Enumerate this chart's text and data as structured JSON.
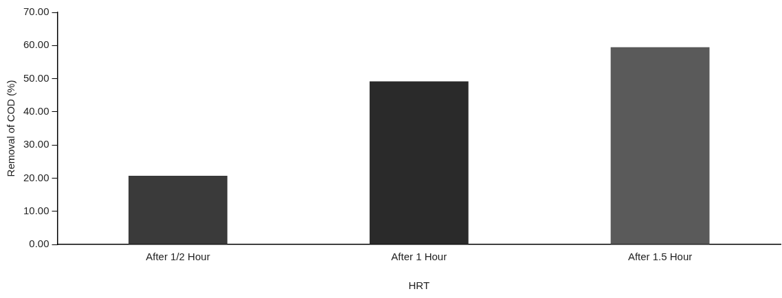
{
  "chart_data": {
    "type": "bar",
    "xlabel": "HRT",
    "ylabel": "Removal of COD (%)",
    "categories": [
      "After 1/2 Hour",
      "After 1 Hour",
      "After 1.5 Hour"
    ],
    "values": [
      20.7,
      49.2,
      59.5
    ],
    "colors": [
      "#3a3a3a",
      "#2a2a2a",
      "#5a5a5a"
    ],
    "ylim": [
      0,
      70
    ],
    "yticks": [
      {
        "value": 0,
        "label": "0.00"
      },
      {
        "value": 10,
        "label": "10.00"
      },
      {
        "value": 20,
        "label": "20.00"
      },
      {
        "value": 30,
        "label": "30.00"
      },
      {
        "value": 40,
        "label": "40.00"
      },
      {
        "value": 50,
        "label": "50.00"
      },
      {
        "value": 60,
        "label": "60.00"
      },
      {
        "value": 70,
        "label": "70.00"
      }
    ],
    "grid": false,
    "legend": false
  }
}
